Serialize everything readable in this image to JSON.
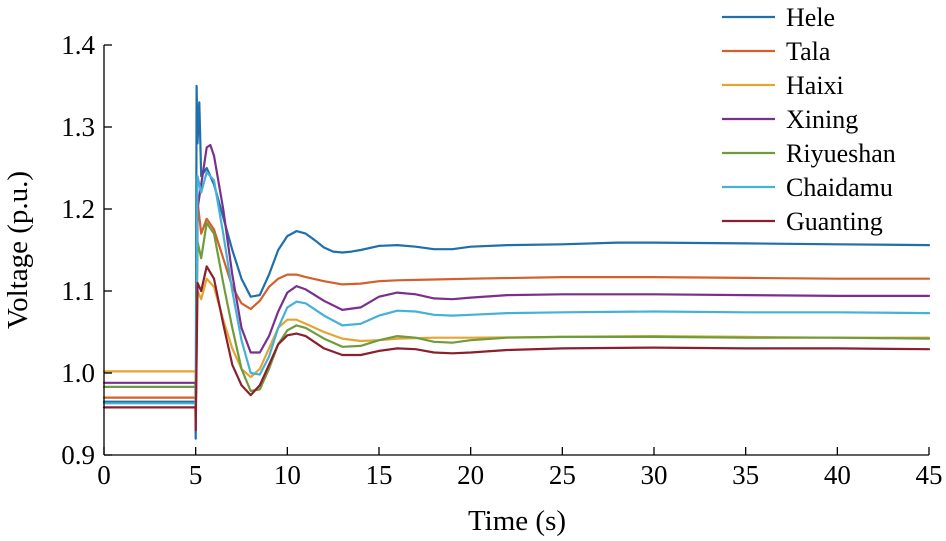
{
  "chart_data": {
    "type": "line",
    "title": "",
    "xlabel": "Time (s)",
    "ylabel": "Voltage (p.u.)",
    "xlim": [
      0,
      45
    ],
    "ylim": [
      0.9,
      1.4
    ],
    "xticks": [
      0,
      5,
      10,
      15,
      20,
      25,
      30,
      35,
      40,
      45
    ],
    "xtick_labels": [
      "0",
      "5",
      "10",
      "15",
      "20",
      "25",
      "30",
      "35",
      "40",
      "45"
    ],
    "yticks": [
      0.9,
      1.0,
      1.1,
      1.2,
      1.3,
      1.4
    ],
    "ytick_labels": [
      "0.9",
      "1.0",
      "1.1",
      "1.2",
      "1.3",
      "1.4"
    ],
    "grid": false,
    "legend_position": "top-right",
    "series": [
      {
        "name": "Hele",
        "color": "#1f6fad",
        "x": [
          0,
          4.99,
          5.0,
          5.05,
          5.1,
          5.2,
          5.3,
          5.6,
          6.0,
          6.5,
          7.0,
          7.5,
          8.0,
          8.5,
          9.0,
          9.5,
          10.0,
          10.5,
          11.0,
          11.5,
          12.0,
          12.5,
          13.0,
          13.5,
          14.0,
          15.0,
          16.0,
          17.0,
          18.0,
          19.0,
          20.0,
          22.0,
          25.0,
          28.0,
          30.0,
          35.0,
          40.0,
          45.0
        ],
        "y": [
          0.965,
          0.965,
          0.92,
          1.35,
          1.28,
          1.33,
          1.24,
          1.25,
          1.23,
          1.19,
          1.15,
          1.115,
          1.093,
          1.095,
          1.12,
          1.15,
          1.167,
          1.173,
          1.17,
          1.162,
          1.153,
          1.148,
          1.147,
          1.148,
          1.15,
          1.155,
          1.156,
          1.154,
          1.151,
          1.151,
          1.154,
          1.156,
          1.157,
          1.159,
          1.159,
          1.158,
          1.157,
          1.156
        ]
      },
      {
        "name": "Tala",
        "color": "#d3602a",
        "x": [
          0,
          4.99,
          5.0,
          5.1,
          5.3,
          5.6,
          6.0,
          6.5,
          7.0,
          7.5,
          8.0,
          8.5,
          9.0,
          9.5,
          10.0,
          10.5,
          11.0,
          12.0,
          13.0,
          14.0,
          15.0,
          16.0,
          18.0,
          20.0,
          25.0,
          30.0,
          35.0,
          40.0,
          45.0
        ],
        "y": [
          0.97,
          0.97,
          0.94,
          1.21,
          1.17,
          1.188,
          1.175,
          1.14,
          1.105,
          1.085,
          1.078,
          1.088,
          1.105,
          1.115,
          1.12,
          1.12,
          1.117,
          1.112,
          1.108,
          1.109,
          1.112,
          1.113,
          1.114,
          1.115,
          1.117,
          1.117,
          1.116,
          1.115,
          1.115
        ]
      },
      {
        "name": "Haixi",
        "color": "#e3a532",
        "x": [
          0,
          4.99,
          5.0,
          5.1,
          5.3,
          5.6,
          6.0,
          6.5,
          7.0,
          7.5,
          8.0,
          8.5,
          9.0,
          9.5,
          10.0,
          10.5,
          11.0,
          12.0,
          13.0,
          14.0,
          15.0,
          16.0,
          18.0,
          20.0,
          25.0,
          30.0,
          35.0,
          40.0,
          45.0
        ],
        "y": [
          1.002,
          1.002,
          0.95,
          1.1,
          1.09,
          1.115,
          1.105,
          1.065,
          1.03,
          1.005,
          0.995,
          1.005,
          1.03,
          1.055,
          1.065,
          1.065,
          1.06,
          1.05,
          1.042,
          1.039,
          1.04,
          1.042,
          1.043,
          1.043,
          1.044,
          1.045,
          1.044,
          1.043,
          1.043
        ]
      },
      {
        "name": "Xining",
        "color": "#7b2f8c",
        "x": [
          0,
          4.99,
          5.0,
          5.1,
          5.3,
          5.6,
          5.8,
          6.0,
          6.5,
          7.0,
          7.5,
          8.0,
          8.5,
          9.0,
          9.5,
          10.0,
          10.5,
          11.0,
          12.0,
          13.0,
          14.0,
          15.0,
          16.0,
          17.0,
          18.0,
          19.0,
          20.0,
          22.0,
          25.0,
          30.0,
          35.0,
          40.0,
          45.0
        ],
        "y": [
          0.988,
          0.988,
          0.93,
          1.2,
          1.23,
          1.275,
          1.278,
          1.265,
          1.2,
          1.12,
          1.055,
          1.025,
          1.025,
          1.045,
          1.075,
          1.098,
          1.106,
          1.102,
          1.088,
          1.077,
          1.08,
          1.093,
          1.098,
          1.096,
          1.091,
          1.09,
          1.092,
          1.095,
          1.096,
          1.096,
          1.095,
          1.094,
          1.094
        ]
      },
      {
        "name": "Riyueshan",
        "color": "#6e9c3c",
        "x": [
          0,
          4.99,
          5.0,
          5.1,
          5.3,
          5.6,
          6.0,
          6.5,
          7.0,
          7.5,
          8.0,
          8.5,
          9.0,
          9.5,
          10.0,
          10.5,
          11.0,
          12.0,
          13.0,
          14.0,
          15.0,
          16.0,
          17.0,
          18.0,
          19.0,
          20.0,
          22.0,
          25.0,
          30.0,
          35.0,
          40.0,
          45.0
        ],
        "y": [
          0.983,
          0.983,
          0.95,
          1.16,
          1.14,
          1.183,
          1.17,
          1.11,
          1.055,
          1.005,
          0.978,
          0.98,
          1.005,
          1.035,
          1.052,
          1.058,
          1.055,
          1.042,
          1.032,
          1.033,
          1.04,
          1.045,
          1.043,
          1.038,
          1.037,
          1.04,
          1.043,
          1.044,
          1.044,
          1.043,
          1.043,
          1.042
        ]
      },
      {
        "name": "Chaidamu",
        "color": "#45b1d6",
        "x": [
          0,
          4.99,
          5.0,
          5.1,
          5.3,
          5.6,
          6.0,
          6.5,
          7.0,
          7.5,
          8.0,
          8.5,
          9.0,
          9.5,
          10.0,
          10.5,
          11.0,
          12.0,
          13.0,
          14.0,
          15.0,
          16.0,
          17.0,
          18.0,
          19.0,
          20.0,
          22.0,
          25.0,
          30.0,
          35.0,
          40.0,
          45.0
        ],
        "y": [
          0.963,
          0.963,
          0.93,
          1.24,
          1.22,
          1.245,
          1.235,
          1.17,
          1.1,
          1.04,
          1.0,
          0.998,
          1.02,
          1.055,
          1.08,
          1.087,
          1.085,
          1.07,
          1.058,
          1.06,
          1.07,
          1.076,
          1.075,
          1.071,
          1.07,
          1.071,
          1.073,
          1.074,
          1.075,
          1.074,
          1.074,
          1.073
        ]
      },
      {
        "name": "Guanting",
        "color": "#8c1f2c",
        "x": [
          0,
          4.99,
          5.0,
          5.1,
          5.3,
          5.6,
          6.0,
          6.5,
          7.0,
          7.5,
          8.0,
          8.5,
          9.0,
          9.5,
          10.0,
          10.5,
          11.0,
          12.0,
          13.0,
          14.0,
          15.0,
          16.0,
          17.0,
          18.0,
          19.0,
          20.0,
          22.0,
          25.0,
          30.0,
          35.0,
          40.0,
          45.0
        ],
        "y": [
          0.958,
          0.958,
          0.93,
          1.11,
          1.1,
          1.13,
          1.115,
          1.06,
          1.01,
          0.985,
          0.973,
          0.985,
          1.01,
          1.035,
          1.046,
          1.048,
          1.045,
          1.03,
          1.022,
          1.022,
          1.027,
          1.03,
          1.029,
          1.025,
          1.024,
          1.025,
          1.028,
          1.03,
          1.031,
          1.03,
          1.03,
          1.029
        ]
      }
    ]
  }
}
